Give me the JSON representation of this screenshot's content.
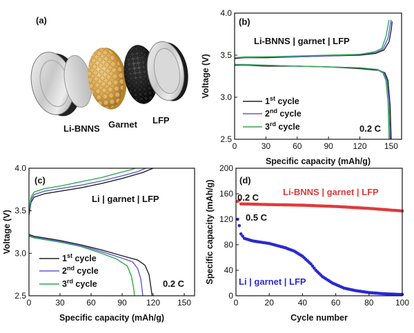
{
  "figure": {
    "panel_a": {
      "label": "(a)",
      "component_labels": [
        "Li-BNNS",
        "Garnet",
        "LFP"
      ]
    }
  },
  "chart_data": [
    {
      "id": "b",
      "type": "line",
      "label": "(b)",
      "title": "Li-BNNS | garnet | LFP",
      "xlabel": "Specific capacity (mAh/g)",
      "ylabel": "Voltage (V)",
      "xlim": [
        0,
        160
      ],
      "ylim": [
        2.5,
        4.0
      ],
      "xticks": [
        0,
        30,
        60,
        90,
        120,
        150
      ],
      "yticks": [
        2.5,
        3.0,
        3.5,
        4.0
      ],
      "rate_annotation": "0.2 C",
      "legend_position": "bottom-left",
      "series": [
        {
          "name": "1st cycle",
          "color": "#222222",
          "charge": [
            [
              0,
              3.46
            ],
            [
              10,
              3.47
            ],
            [
              30,
              3.47
            ],
            [
              60,
              3.48
            ],
            [
              90,
              3.49
            ],
            [
              120,
              3.5
            ],
            [
              135,
              3.52
            ],
            [
              143,
              3.56
            ],
            [
              148,
              3.66
            ],
            [
              150,
              3.8
            ],
            [
              151,
              3.9
            ]
          ],
          "discharge": [
            [
              0,
              3.38
            ],
            [
              10,
              3.38
            ],
            [
              30,
              3.37
            ],
            [
              60,
              3.37
            ],
            [
              90,
              3.36
            ],
            [
              120,
              3.34
            ],
            [
              138,
              3.32
            ],
            [
              144,
              3.29
            ],
            [
              147,
              3.2
            ],
            [
              149,
              2.9
            ],
            [
              150,
              2.5
            ]
          ]
        },
        {
          "name": "2nd cycle",
          "color": "#5d5bd6",
          "charge": [
            [
              0,
              3.47
            ],
            [
              10,
              3.47
            ],
            [
              30,
              3.48
            ],
            [
              60,
              3.48
            ],
            [
              90,
              3.49
            ],
            [
              120,
              3.51
            ],
            [
              135,
              3.53
            ],
            [
              142,
              3.57
            ],
            [
              147,
              3.7
            ],
            [
              149,
              3.85
            ],
            [
              150,
              3.92
            ]
          ],
          "discharge": [
            [
              0,
              3.39
            ],
            [
              10,
              3.38
            ],
            [
              30,
              3.38
            ],
            [
              60,
              3.37
            ],
            [
              90,
              3.36
            ],
            [
              120,
              3.35
            ],
            [
              137,
              3.33
            ],
            [
              143,
              3.29
            ],
            [
              146,
              3.2
            ],
            [
              148,
              2.95
            ],
            [
              149,
              2.5
            ]
          ]
        },
        {
          "name": "3rd cycle",
          "color": "#2fa84f",
          "charge": [
            [
              0,
              3.47
            ],
            [
              10,
              3.48
            ],
            [
              30,
              3.48
            ],
            [
              60,
              3.49
            ],
            [
              90,
              3.5
            ],
            [
              120,
              3.51
            ],
            [
              134,
              3.54
            ],
            [
              141,
              3.58
            ],
            [
              145,
              3.72
            ],
            [
              147,
              3.85
            ],
            [
              148,
              3.92
            ]
          ],
          "discharge": [
            [
              0,
              3.39
            ],
            [
              10,
              3.39
            ],
            [
              30,
              3.38
            ],
            [
              60,
              3.37
            ],
            [
              90,
              3.36
            ],
            [
              120,
              3.35
            ],
            [
              136,
              3.33
            ],
            [
              142,
              3.29
            ],
            [
              145,
              3.2
            ],
            [
              147,
              2.95
            ],
            [
              148,
              2.5
            ]
          ]
        }
      ]
    },
    {
      "id": "c",
      "type": "line",
      "label": "(c)",
      "title": "Li | garnet | LFP",
      "xlabel": "Specific capacity (mAh/g)",
      "ylabel": "Voltage (V)",
      "xlim": [
        0,
        160
      ],
      "ylim": [
        2.5,
        4.0
      ],
      "xticks": [
        0,
        30,
        60,
        90,
        120,
        150
      ],
      "yticks": [
        2.5,
        3.0,
        3.5,
        4.0
      ],
      "rate_annotation": "0.2 C",
      "legend_position": "bottom-left",
      "series": [
        {
          "name": "1st cycle",
          "color": "#222222",
          "charge": [
            [
              0,
              3.45
            ],
            [
              2,
              3.6
            ],
            [
              5,
              3.66
            ],
            [
              15,
              3.7
            ],
            [
              30,
              3.73
            ],
            [
              50,
              3.77
            ],
            [
              70,
              3.82
            ],
            [
              90,
              3.88
            ],
            [
              110,
              3.95
            ],
            [
              120,
              4.0
            ]
          ],
          "discharge": [
            [
              0,
              3.22
            ],
            [
              5,
              3.2
            ],
            [
              15,
              3.18
            ],
            [
              30,
              3.15
            ],
            [
              50,
              3.1
            ],
            [
              70,
              3.04
            ],
            [
              90,
              2.97
            ],
            [
              105,
              2.92
            ],
            [
              112,
              2.86
            ],
            [
              116,
              2.75
            ],
            [
              119,
              2.5
            ]
          ]
        },
        {
          "name": "2nd cycle",
          "color": "#5d5bd6",
          "charge": [
            [
              0,
              3.48
            ],
            [
              2,
              3.63
            ],
            [
              5,
              3.69
            ],
            [
              15,
              3.73
            ],
            [
              30,
              3.76
            ],
            [
              50,
              3.8
            ],
            [
              70,
              3.85
            ],
            [
              90,
              3.91
            ],
            [
              105,
              3.96
            ],
            [
              113,
              4.0
            ]
          ],
          "discharge": [
            [
              0,
              3.21
            ],
            [
              5,
              3.19
            ],
            [
              15,
              3.17
            ],
            [
              30,
              3.14
            ],
            [
              50,
              3.09
            ],
            [
              70,
              3.02
            ],
            [
              88,
              2.95
            ],
            [
              100,
              2.9
            ],
            [
              105,
              2.82
            ],
            [
              108,
              2.7
            ],
            [
              110,
              2.5
            ]
          ]
        },
        {
          "name": "3rd cycle",
          "color": "#2fa84f",
          "charge": [
            [
              0,
              3.5
            ],
            [
              2,
              3.66
            ],
            [
              5,
              3.72
            ],
            [
              15,
              3.76
            ],
            [
              30,
              3.79
            ],
            [
              50,
              3.84
            ],
            [
              70,
              3.89
            ],
            [
              85,
              3.94
            ],
            [
              98,
              3.98
            ],
            [
              103,
              4.0
            ]
          ],
          "discharge": [
            [
              0,
              3.2
            ],
            [
              5,
              3.18
            ],
            [
              15,
              3.16
            ],
            [
              30,
              3.13
            ],
            [
              50,
              3.08
            ],
            [
              70,
              3.0
            ],
            [
              85,
              2.93
            ],
            [
              95,
              2.85
            ],
            [
              99,
              2.73
            ],
            [
              101,
              2.6
            ],
            [
              102,
              2.5
            ]
          ]
        }
      ]
    },
    {
      "id": "d",
      "type": "scatter",
      "label": "(d)",
      "xlabel": "Cycle number",
      "ylabel": "Specific capacity (mAh/g)",
      "xlim": [
        0,
        100
      ],
      "ylim": [
        0,
        200
      ],
      "xticks": [
        0,
        20,
        40,
        60,
        80,
        100
      ],
      "yticks": [
        0,
        40,
        80,
        120,
        160,
        200
      ],
      "rate_annotations": [
        "0.2 C",
        "0.5 C"
      ],
      "series": [
        {
          "name": "Li-BNNS | garnet | LFP",
          "color": "#e03a3a",
          "anchors": [
            [
              1,
              148
            ],
            [
              2,
              150
            ],
            [
              3,
              144
            ],
            [
              5,
              144
            ],
            [
              20,
              143
            ],
            [
              40,
              142
            ],
            [
              60,
              140
            ],
            [
              80,
              137
            ],
            [
              100,
              133
            ]
          ]
        },
        {
          "name": "Li | garnet | LFP",
          "color": "#2a2ad0",
          "anchors": [
            [
              1,
              120
            ],
            [
              2,
              110
            ],
            [
              3,
              97
            ],
            [
              5,
              90
            ],
            [
              10,
              86
            ],
            [
              20,
              82
            ],
            [
              30,
              75
            ],
            [
              35,
              70
            ],
            [
              40,
              62
            ],
            [
              45,
              50
            ],
            [
              48,
              40
            ],
            [
              52,
              30
            ],
            [
              58,
              20
            ],
            [
              65,
              12
            ],
            [
              72,
              8
            ],
            [
              80,
              5
            ],
            [
              90,
              3
            ],
            [
              100,
              2
            ]
          ]
        }
      ]
    }
  ]
}
